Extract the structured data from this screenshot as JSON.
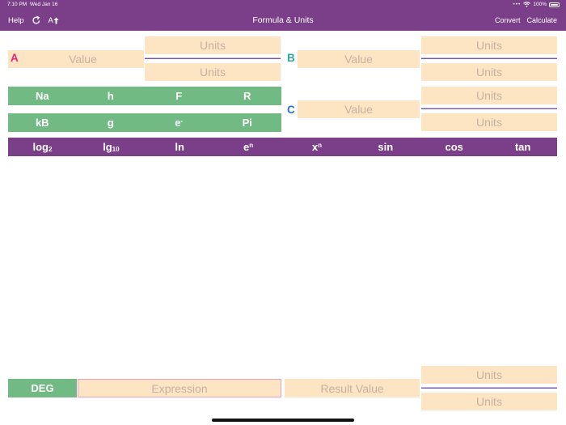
{
  "status_bar": {
    "time": "7:10 PM",
    "date": "Wed Jan 16",
    "battery": "100%"
  },
  "nav": {
    "help": "Help",
    "title": "Formula & Units",
    "convert": "Convert",
    "calculate": "Calculate",
    "font_label": "A"
  },
  "variables": {
    "a": {
      "letter": "A",
      "value_placeholder": "Value",
      "units_top": "Units",
      "units_bottom": "Units"
    },
    "b": {
      "letter": "B",
      "value_placeholder": "Value",
      "units_top": "Units",
      "units_bottom": "Units"
    },
    "c": {
      "letter": "C",
      "value_placeholder": "Value",
      "units_top": "Units",
      "units_bottom": "Units"
    }
  },
  "constants_row1": [
    "Na",
    "h",
    "F",
    "R"
  ],
  "constants_row2": {
    "kb": "kB",
    "g": "g",
    "e_base": "e",
    "e_sup": "-",
    "pi": "Pi"
  },
  "functions": {
    "log2_base": "log",
    "log2_sub": "2",
    "lg10_base": "lg",
    "lg10_sub": "10",
    "ln": "ln",
    "en_base": "e",
    "en_sup": "n",
    "xn_base": "x",
    "xn_sup": "n",
    "sin": "sin",
    "cos": "cos",
    "tan": "tan"
  },
  "bottom": {
    "angle_mode": "DEG",
    "expression_placeholder": "Expression",
    "result_placeholder": "Result Value",
    "units_top": "Units",
    "units_bottom": "Units"
  },
  "colors": {
    "accent": "#7b3f8a",
    "green": "#72ba84",
    "peach": "#fde5c3",
    "label_a": "#e8257b",
    "label_b": "#2fa7a0",
    "label_c": "#2a72c9"
  }
}
